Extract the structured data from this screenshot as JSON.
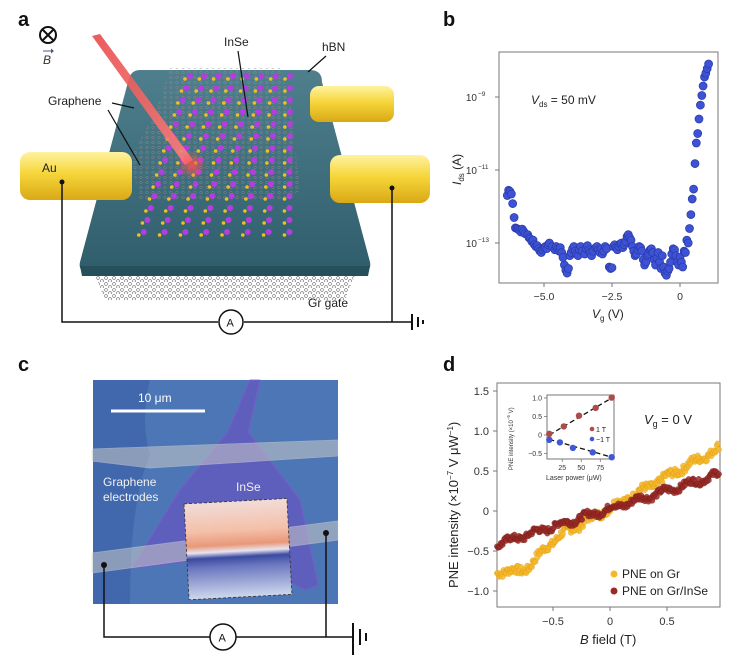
{
  "panels": {
    "a": {
      "letter": "a",
      "field_symbol": "⊗",
      "field_label": "B",
      "labels": {
        "inse": "InSe",
        "hbn": "hBN",
        "graphene": "Graphene",
        "au": "Au",
        "gr_gate": "Gr gate",
        "ammeter": "A"
      },
      "colors": {
        "hbn": "#3f6f7d",
        "gold": "#f4d33a",
        "inse_in": "#b43de0",
        "inse_se": "#f0c020",
        "laser": "#e84a4a"
      }
    },
    "b": {
      "letter": "b",
      "annotation_v": "V",
      "annotation_sub": "ds",
      "annotation_rest": " = 50 mV"
    },
    "c": {
      "letter": "c",
      "scale_bar": "10 μm",
      "label_graphene_1": "Graphene",
      "label_graphene_2": "electrodes",
      "label_inse": "InSe",
      "ammeter": "A",
      "colors": {
        "substrate": "#4a72b2",
        "flake": "#5a4fb8",
        "electrode": "#a7b5c8"
      }
    },
    "d": {
      "letter": "d",
      "annotation_v": "V",
      "annotation_sub": "g",
      "annotation_rest": " = 0 V"
    }
  },
  "chart_data": [
    {
      "id": "b",
      "type": "scatter",
      "title": "",
      "xlabel": "V_g (V)",
      "xlabel_main": "V",
      "xlabel_sub": "g",
      "xlabel_unit": " (V)",
      "ylabel": "I_ds (A)",
      "ylabel_main": "I",
      "ylabel_sub": "ds",
      "ylabel_unit": " (A)",
      "yscale": "log",
      "xlim": [
        -6.5,
        1.2
      ],
      "ylim_exp": [
        -13.8,
        -8.3
      ],
      "xticks": [
        -5.0,
        -2.5,
        0
      ],
      "xtick_labels": [
        "−5.0",
        "−2.5",
        "0"
      ],
      "yticks_exp": [
        -9,
        -11,
        -13
      ],
      "ytick_labels": [
        "10",
        "10",
        "10"
      ],
      "ytick_sups": [
        "−9",
        "−11",
        "−13"
      ],
      "grid": false,
      "series": [
        {
          "name": "I_ds",
          "color": "#3d52d5",
          "x": [
            -6.35,
            -6.3,
            -6.25,
            -6.2,
            -6.15,
            -6.1,
            -6.05,
            -6.0,
            -5.95,
            -5.9,
            -5.85,
            -5.8,
            -5.75,
            -5.7,
            -5.6,
            -5.55,
            -5.5,
            -5.45,
            -5.4,
            -5.35,
            -5.3,
            -5.25,
            -5.2,
            -5.15,
            -5.1,
            -5.05,
            -5.0,
            -4.95,
            -4.9,
            -4.85,
            -4.8,
            -4.7,
            -4.6,
            -4.55,
            -4.5,
            -4.45,
            -4.4,
            -4.35,
            -4.3,
            -4.25,
            -4.2,
            -4.15,
            -4.1,
            -4.05,
            -4.0,
            -3.95,
            -3.9,
            -3.85,
            -3.8,
            -3.75,
            -3.7,
            -3.65,
            -3.6,
            -3.5,
            -3.45,
            -3.4,
            -3.35,
            -3.3,
            -3.25,
            -3.2,
            -3.1,
            -3.05,
            -3.0,
            -2.95,
            -2.9,
            -2.85,
            -2.8,
            -2.75,
            -2.7,
            -2.6,
            -2.55,
            -2.5,
            -2.45,
            -2.4,
            -2.35,
            -2.3,
            -2.25,
            -2.2,
            -2.15,
            -2.1,
            -2.05,
            -2.0,
            -1.95,
            -1.9,
            -1.85,
            -1.8,
            -1.75,
            -1.7,
            -1.65,
            -1.6,
            -1.55,
            -1.5,
            -1.45,
            -1.4,
            -1.35,
            -1.3,
            -1.25,
            -1.2,
            -1.15,
            -1.1,
            -1.05,
            -1.0,
            -0.95,
            -0.9,
            -0.85,
            -0.8,
            -0.75,
            -0.7,
            -0.65,
            -0.6,
            -0.55,
            -0.5,
            -0.45,
            -0.4,
            -0.35,
            -0.3,
            -0.25,
            -0.2,
            -0.15,
            -0.1,
            -0.05,
            0.0,
            0.05,
            0.1,
            0.15,
            0.2,
            0.25,
            0.3,
            0.35,
            0.4,
            0.45,
            0.5,
            0.55,
            0.6,
            0.65,
            0.7,
            0.75,
            0.8,
            0.85,
            0.9,
            0.95,
            1.0,
            1.05
          ],
          "y": [
            2e-12,
            2.8e-12,
            2.6e-12,
            2.2e-12,
            1.2e-12,
            5e-13,
            2.6e-13,
            2.5e-13,
            2.4e-13,
            2.2e-13,
            2e-13,
            2.4e-13,
            2.1e-13,
            1.8e-13,
            1.7e-13,
            1.4e-13,
            1.3e-13,
            1.1e-13,
            1.2e-13,
            9e-14,
            8e-14,
            8.5e-14,
            7e-14,
            6e-14,
            5.5e-14,
            6.5e-14,
            7.5e-14,
            8e-14,
            7e-14,
            9e-14,
            1e-13,
            8e-14,
            6.5e-14,
            8e-14,
            7e-14,
            6e-14,
            7.5e-14,
            5.5e-14,
            4e-14,
            2.5e-14,
            1.8e-14,
            1.5e-14,
            2e-14,
            4.5e-14,
            5.5e-14,
            7e-14,
            8e-14,
            6e-14,
            5e-14,
            4.5e-14,
            6.5e-14,
            8e-14,
            6e-14,
            5e-14,
            7e-14,
            8.5e-14,
            6.5e-14,
            5.5e-14,
            4.5e-14,
            6e-14,
            7.5e-14,
            8e-14,
            6.5e-14,
            5.5e-14,
            7e-14,
            5e-14,
            6e-14,
            8e-14,
            7e-14,
            2.2e-14,
            2e-14,
            2.1e-14,
            8e-14,
            9e-14,
            7.5e-14,
            6.5e-14,
            8e-14,
            9.5e-14,
            1e-13,
            7.5e-14,
            9e-14,
            1.1e-13,
            1.5e-13,
            1.7e-13,
            1.4e-13,
            1.2e-13,
            8e-14,
            6e-14,
            4.5e-14,
            5e-14,
            6.5e-14,
            8e-14,
            7.5e-14,
            6e-14,
            3.5e-14,
            2.5e-14,
            3e-14,
            4.5e-14,
            5e-14,
            6.5e-14,
            7e-14,
            5.5e-14,
            3.5e-14,
            2.5e-14,
            4e-14,
            5.5e-14,
            3e-14,
            2e-14,
            4.5e-14,
            2.2e-14,
            1.5e-14,
            1.3e-14,
            1.7e-14,
            2e-14,
            3e-14,
            5e-14,
            7e-14,
            6.5e-14,
            4.5e-14,
            3e-14,
            2.5e-14,
            4e-14,
            3e-14,
            2.2e-14,
            6e-14,
            5.5e-14,
            1.2e-13,
            1e-13,
            2.5e-13,
            6e-13,
            1.6e-12,
            3e-12,
            1.5e-11,
            5.5e-11,
            1e-10,
            2.5e-10,
            6e-10,
            1.1e-09,
            2e-09,
            3.5e-09,
            4.5e-09,
            6e-09,
            8e-09
          ]
        }
      ]
    },
    {
      "id": "d",
      "type": "scatter",
      "title": "",
      "xlabel": "B field (T)",
      "xlabel_main": "B",
      "xlabel_rest": " field (T)",
      "ylabel": "PNE intensity (×10^−7 V μW^−1)",
      "ylabel_text": "PNE intensity (×10",
      "ylabel_sup1": "−7",
      "ylabel_mid": " V μW",
      "ylabel_sup2": "−1",
      "ylabel_end": ")",
      "xlim": [
        -1.0,
        0.97
      ],
      "ylim": [
        -1.2,
        1.6
      ],
      "xticks": [
        -0.5,
        0,
        0.5
      ],
      "xtick_labels": [
        "−0.5",
        "0",
        "0.5"
      ],
      "yticks": [
        1.5,
        1.0,
        0.5,
        0,
        -0.5,
        -1.0
      ],
      "ytick_labels": [
        "1.5",
        "1.0",
        "0.5",
        "0",
        "−0.5",
        "−1.0"
      ],
      "grid": false,
      "legend": {
        "position": "bottom-right",
        "entries": [
          "PNE on Gr",
          "PNE on Gr/InSe"
        ]
      },
      "series": [
        {
          "name": "PNE on Gr",
          "color": "#f5b82a",
          "edge": "#e09a10",
          "slope": 0.78,
          "intercept": 0.04,
          "dip": {
            "x": -0.75,
            "depth": 0.18
          },
          "noise": 0.05
        },
        {
          "name": "PNE on Gr/InSe",
          "color": "#9a2a26",
          "edge": "#6e1a18",
          "slope": 0.45,
          "intercept": 0.03,
          "dip": null,
          "noise": 0.04
        }
      ],
      "inset": {
        "type": "scatter",
        "xlabel": "Laser power (μW)",
        "ylabel": "PNE intensity (×10^−5 V)",
        "ylabel_text": "PNE intensity (×10",
        "ylabel_sup": "−5",
        "ylabel_end": " V)",
        "xlim": [
          5,
          93
        ],
        "ylim": [
          -0.65,
          1.08
        ],
        "xticks": [
          25,
          50,
          75
        ],
        "xtick_labels": [
          "25",
          "50",
          "75"
        ],
        "yticks": [
          1.0,
          0.5,
          0,
          -0.5
        ],
        "ytick_labels": [
          "1.0",
          "0.5",
          "0",
          "−0.5"
        ],
        "legend": {
          "position": "bottom-right",
          "entries": [
            "1 T",
            "−1 T"
          ]
        },
        "series": [
          {
            "name": "1 T",
            "color": "#b04a48",
            "x": [
              8,
              27,
              47,
              69,
              90
            ],
            "y": [
              0.03,
              0.23,
              0.52,
              0.73,
              1.01
            ],
            "fit": [
              [
                8,
                0.0
              ],
              [
                90,
                1.0
              ]
            ]
          },
          {
            "name": "−1 T",
            "color": "#4058d8",
            "x": [
              8,
              22,
              39,
              65,
              90
            ],
            "y": [
              -0.13,
              -0.2,
              -0.35,
              -0.47,
              -0.6
            ],
            "fit": [
              [
                8,
                -0.12
              ],
              [
                90,
                -0.6
              ]
            ]
          }
        ]
      }
    }
  ]
}
